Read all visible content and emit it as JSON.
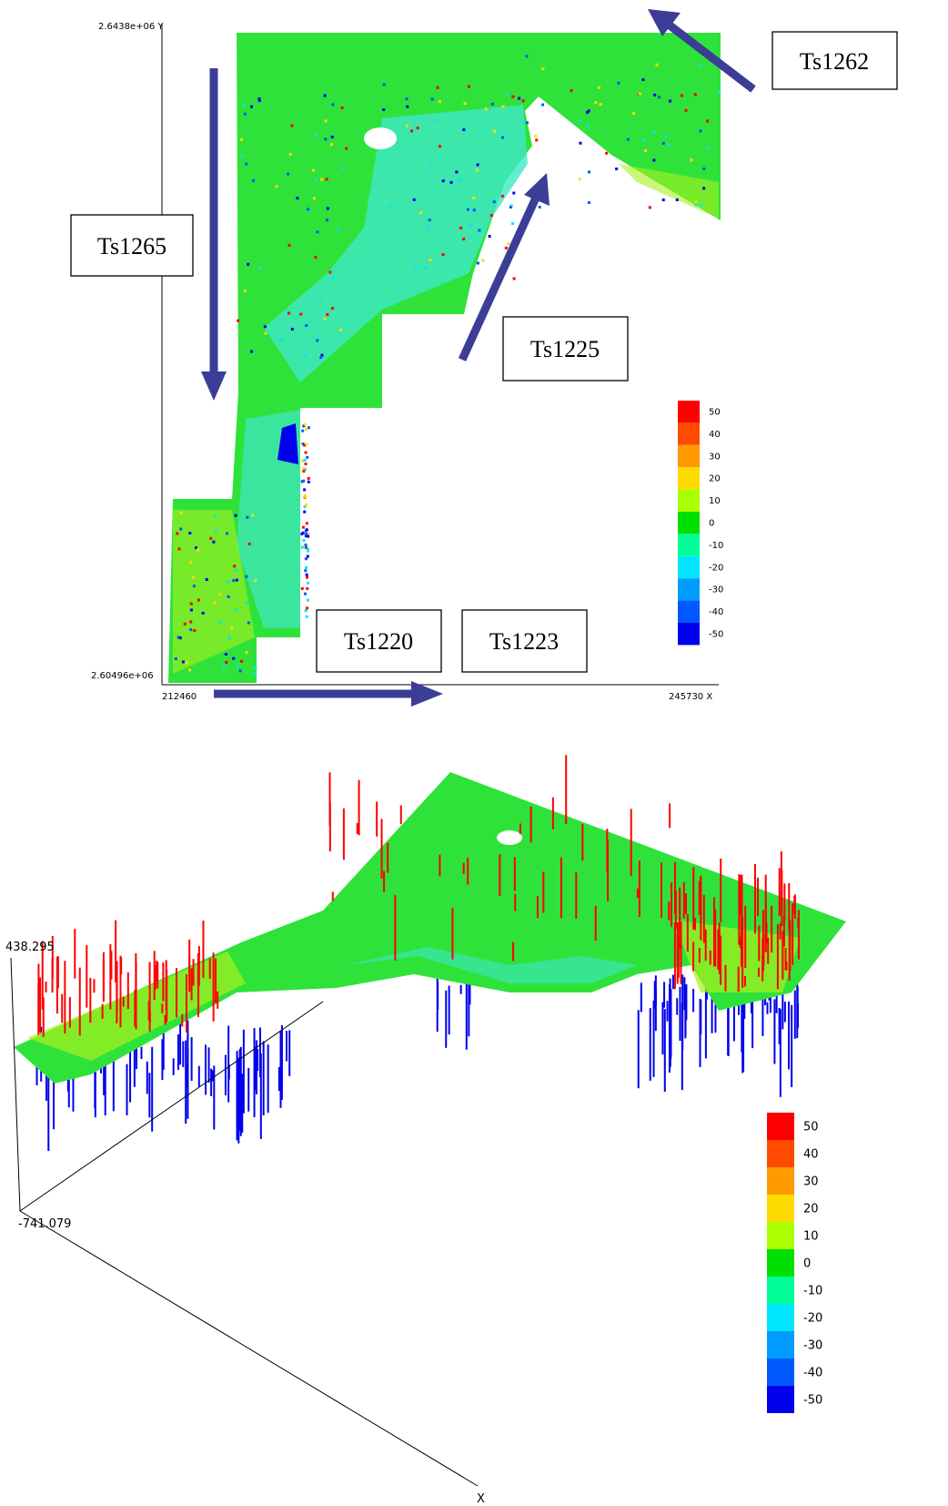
{
  "map_2d": {
    "y_axis": {
      "top_label": "2.6438e+06 Y",
      "bottom_label": "2.60496e+06"
    },
    "x_axis": {
      "left_label": "212460",
      "right_label": "245730 X"
    },
    "strips": [
      "Ts1262",
      "Ts1265",
      "Ts1225",
      "Ts1220",
      "Ts1223"
    ],
    "legend": [
      {
        "label": "50",
        "color": "#ff0000"
      },
      {
        "label": "40",
        "color": "#ff4a00"
      },
      {
        "label": "30",
        "color": "#ff9a00"
      },
      {
        "label": "20",
        "color": "#ffdc00"
      },
      {
        "label": "10",
        "color": "#aaff00"
      },
      {
        "label": "0",
        "color": "#00e000"
      },
      {
        "label": "-10",
        "color": "#00ff99"
      },
      {
        "label": "-20",
        "color": "#00e6ff"
      },
      {
        "label": "-30",
        "color": "#009cff"
      },
      {
        "label": "-40",
        "color": "#0058ff"
      },
      {
        "label": "-50",
        "color": "#0000ee"
      }
    ]
  },
  "map_3d": {
    "z_top_label": "438.295",
    "z_bottom_label": "-741.079",
    "x_axis_label": "X",
    "legend": [
      {
        "label": "50",
        "color": "#ff0000"
      },
      {
        "label": "40",
        "color": "#ff4a00"
      },
      {
        "label": "30",
        "color": "#ff9a00"
      },
      {
        "label": "20",
        "color": "#ffdc00"
      },
      {
        "label": "10",
        "color": "#aaff00"
      },
      {
        "label": "0",
        "color": "#00e000"
      },
      {
        "label": "-10",
        "color": "#00ff99"
      },
      {
        "label": "-20",
        "color": "#00e6ff"
      },
      {
        "label": "-30",
        "color": "#009cff"
      },
      {
        "label": "-40",
        "color": "#0058ff"
      },
      {
        "label": "-50",
        "color": "#0000ee"
      }
    ]
  }
}
